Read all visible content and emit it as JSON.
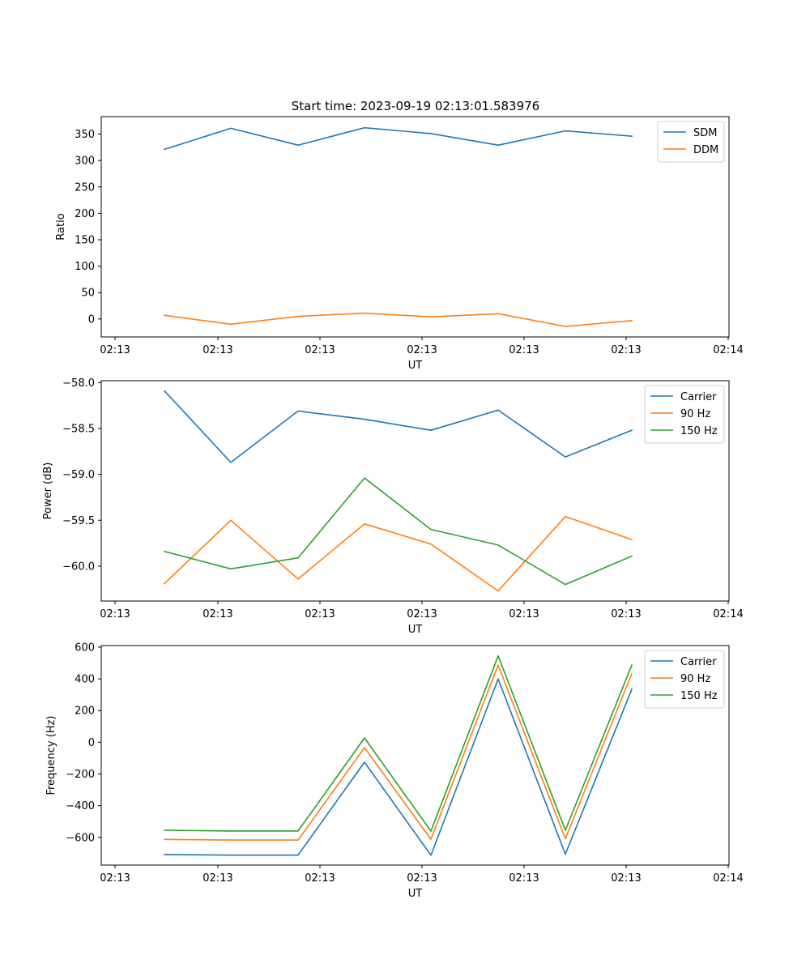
{
  "figure_title": "Start time: 2023-09-19 02:13:01.583976",
  "chart_data": [
    {
      "type": "line",
      "xlabel": "UT",
      "ylabel": "Ratio",
      "x_tick_labels": [
        "02:13",
        "02:13",
        "02:13",
        "02:13",
        "02:13",
        "02:13",
        "02:14"
      ],
      "ylim": [
        -34,
        383
      ],
      "yticks": [
        0,
        50,
        100,
        150,
        200,
        250,
        300,
        350
      ],
      "y_tick_labels": [
        "0",
        "50",
        "100",
        "150",
        "200",
        "250",
        "300",
        "350"
      ],
      "legend_position": "top-right",
      "series": [
        {
          "name": "SDM",
          "color": "#1f77b4",
          "values": [
            321,
            361,
            329,
            362,
            351,
            329,
            356,
            346
          ]
        },
        {
          "name": "DDM",
          "color": "#ff7f0e",
          "values": [
            7,
            -10,
            5,
            11,
            4,
            10,
            -14,
            -3
          ]
        }
      ]
    },
    {
      "type": "line",
      "xlabel": "UT",
      "ylabel": "Power (dB)",
      "x_tick_labels": [
        "02:13",
        "02:13",
        "02:13",
        "02:13",
        "02:13",
        "02:13",
        "02:14"
      ],
      "ylim": [
        -60.38,
        -57.98
      ],
      "yticks": [
        -60.0,
        -59.5,
        -59.0,
        -58.5,
        -58.0
      ],
      "y_tick_labels": [
        "−60.0",
        "−59.5",
        "−59.0",
        "−58.5",
        "−58.0"
      ],
      "legend_position": "top-right",
      "series": [
        {
          "name": "Carrier",
          "color": "#1f77b4",
          "values": [
            -58.09,
            -58.87,
            -58.31,
            -58.4,
            -58.52,
            -58.3,
            -58.81,
            -58.52
          ]
        },
        {
          "name": "90 Hz",
          "color": "#ff7f0e",
          "values": [
            -60.19,
            -59.5,
            -60.14,
            -59.54,
            -59.76,
            -60.27,
            -59.46,
            -59.71
          ]
        },
        {
          "name": "150 Hz",
          "color": "#2ca02c",
          "values": [
            -59.84,
            -60.03,
            -59.91,
            -59.04,
            -59.6,
            -59.77,
            -60.2,
            -59.89
          ]
        }
      ]
    },
    {
      "type": "line",
      "xlabel": "UT",
      "ylabel": "Frequency (Hz)",
      "x_tick_labels": [
        "02:13",
        "02:13",
        "02:13",
        "02:13",
        "02:13",
        "02:13",
        "02:14"
      ],
      "ylim": [
        -775,
        610
      ],
      "yticks": [
        -600,
        -400,
        -200,
        0,
        200,
        400,
        600
      ],
      "y_tick_labels": [
        "−600",
        "−400",
        "−200",
        "0",
        "200",
        "400",
        "600"
      ],
      "legend_position": "top-right",
      "series": [
        {
          "name": "Carrier",
          "color": "#1f77b4",
          "values": [
            -709,
            -712,
            -712,
            -126,
            -713,
            399,
            -706,
            334
          ]
        },
        {
          "name": "90 Hz",
          "color": "#ff7f0e",
          "values": [
            -613,
            -617,
            -617,
            -34,
            -612,
            487,
            -609,
            433
          ]
        },
        {
          "name": "150 Hz",
          "color": "#2ca02c",
          "values": [
            -555,
            -560,
            -560,
            27,
            -561,
            545,
            -555,
            487
          ]
        }
      ]
    }
  ]
}
